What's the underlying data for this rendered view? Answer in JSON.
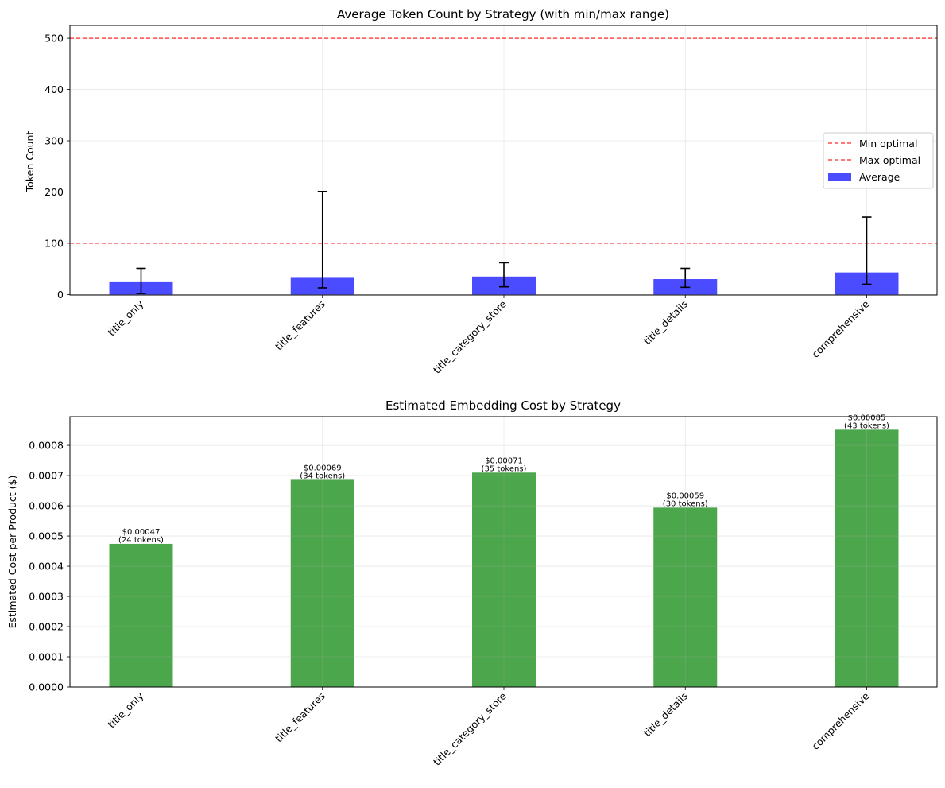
{
  "chart_data": [
    {
      "type": "bar",
      "title": "Average Token Count by Strategy (with min/max range)",
      "xlabel": "",
      "ylabel": "Token Count",
      "categories": [
        "title_only",
        "title_features",
        "title_category_store",
        "title_details",
        "comprehensive"
      ],
      "series": [
        {
          "name": "Average",
          "values": [
            24,
            34,
            35,
            30,
            43
          ],
          "min": [
            2,
            13,
            15,
            14,
            20
          ],
          "max": [
            51,
            201,
            62,
            51,
            151
          ],
          "color": "#4b4bff"
        }
      ],
      "reference_lines": [
        {
          "name": "Min optimal",
          "value": 100,
          "color": "#ff4b4b"
        },
        {
          "name": "Max optimal",
          "value": 500,
          "color": "#ff4b4b"
        }
      ],
      "yticks": [
        0,
        100,
        200,
        300,
        400,
        500
      ],
      "ylim": [
        -1,
        525
      ],
      "grid": true,
      "legend_position": "center-right"
    },
    {
      "type": "bar",
      "title": "Estimated Embedding Cost by Strategy",
      "xlabel": "",
      "ylabel": "Estimated Cost per Product ($)",
      "categories": [
        "title_only",
        "title_features",
        "title_category_store",
        "title_details",
        "comprehensive"
      ],
      "series": [
        {
          "values": [
            0.000474,
            0.000686,
            0.00071,
            0.000594,
            0.000852
          ],
          "color": "#4ca64c"
        }
      ],
      "data_labels": [
        [
          "$0.00047",
          "(24 tokens)"
        ],
        [
          "$0.00069",
          "(34 tokens)"
        ],
        [
          "$0.00071",
          "(35 tokens)"
        ],
        [
          "$0.00059",
          "(30 tokens)"
        ],
        [
          "$0.00085",
          "(43 tokens)"
        ]
      ],
      "yticks": [
        "0.0000",
        "0.0001",
        "0.0002",
        "0.0003",
        "0.0004",
        "0.0005",
        "0.0006",
        "0.0007",
        "0.0008"
      ],
      "ylim": [
        0,
        0.000895
      ],
      "grid": true
    }
  ]
}
